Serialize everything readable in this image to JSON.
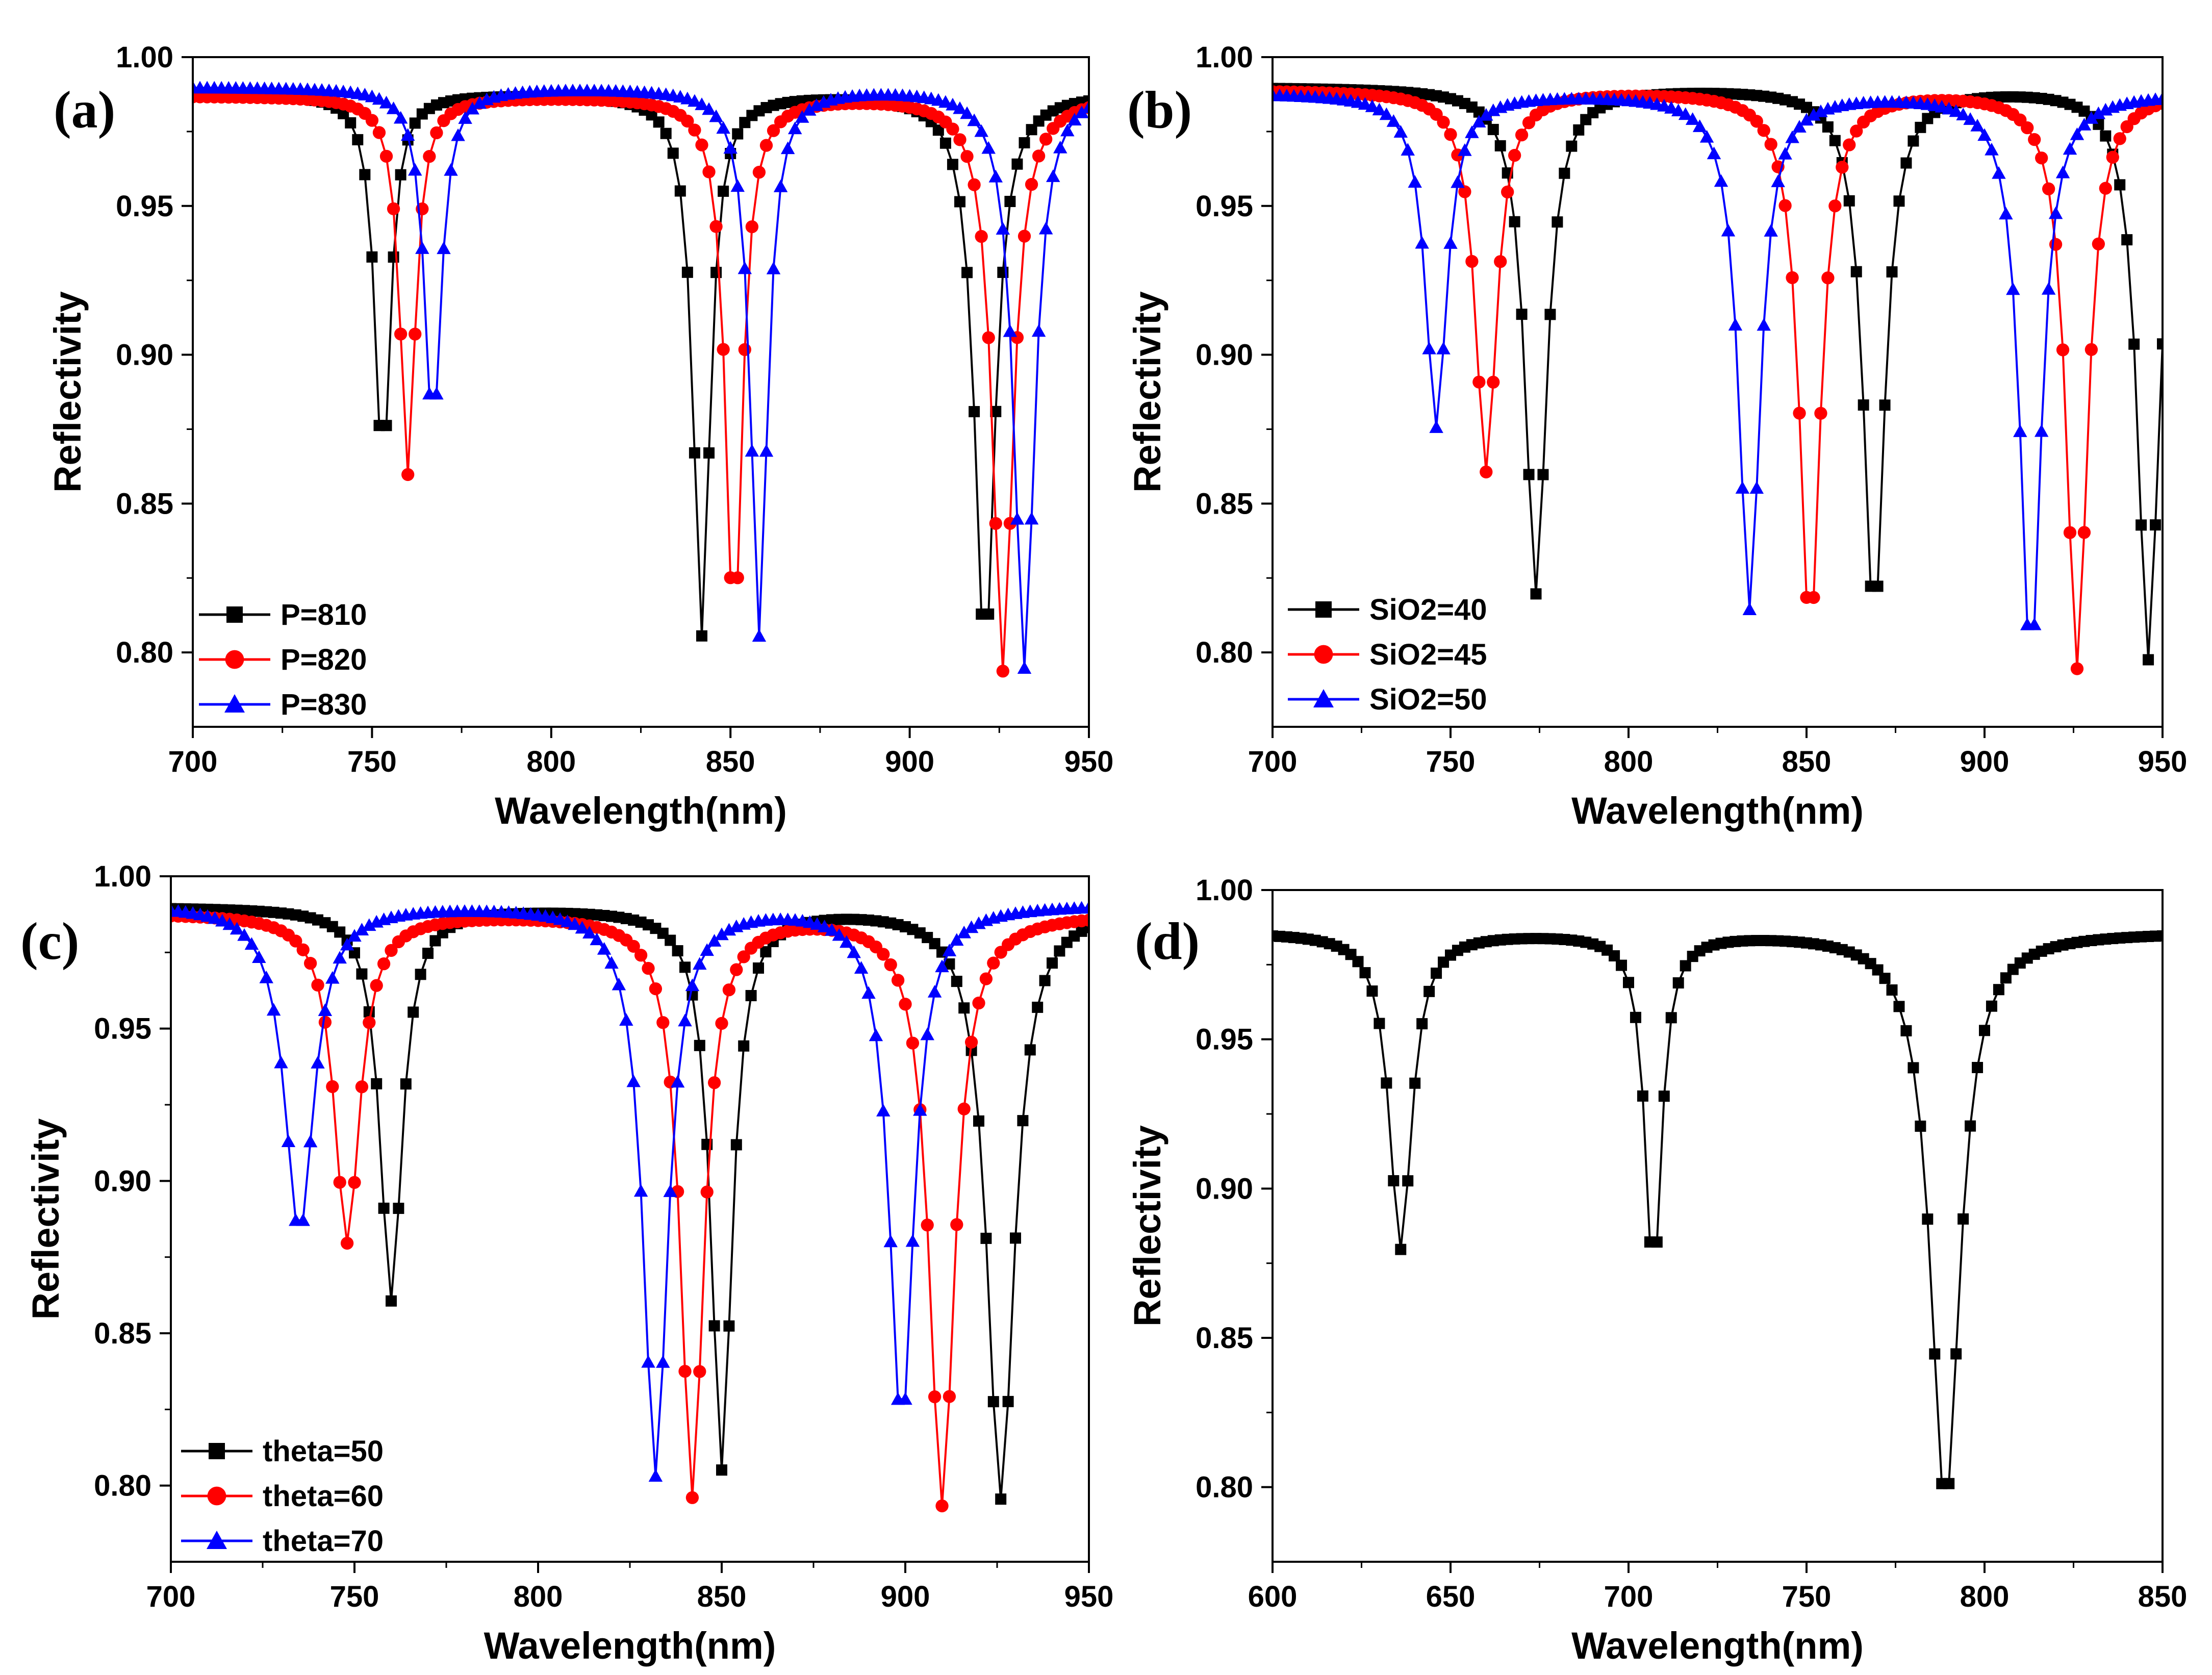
{
  "chart_data": [
    {
      "type": "line",
      "panel_label": "(a)",
      "xlabel": "Wavelength(nm)",
      "ylabel": "Reflectivity",
      "xlim": [
        700,
        950
      ],
      "ylim": [
        0.775,
        1.0
      ],
      "xticks": [
        700,
        750,
        800,
        850,
        900,
        950
      ],
      "yticks": [
        0.8,
        0.85,
        0.9,
        0.95,
        1.0
      ],
      "xtick_labels": [
        "700",
        "750",
        "800",
        "850",
        "900",
        "950"
      ],
      "ytick_labels": [
        "0.80",
        "0.85",
        "0.90",
        "0.95",
        "1.00"
      ],
      "legend_position": "bottom-left",
      "x_step": 2,
      "series": [
        {
          "name": "P=810",
          "color": "#000000",
          "marker": "square",
          "baseline": 0.988,
          "dips": [
            {
              "center": 753,
              "depth": 0.128,
              "width": 2.6
            },
            {
              "center": 842,
              "depth": 0.182,
              "width": 2.8
            },
            {
              "center": 921,
              "depth": 0.19,
              "width": 3.4
            }
          ]
        },
        {
          "name": "P=820",
          "color": "#ff0000",
          "marker": "circle",
          "baseline": 0.987,
          "dips": [
            {
              "center": 760,
              "depth": 0.127,
              "width": 2.6
            },
            {
              "center": 851,
              "depth": 0.182,
              "width": 2.8
            },
            {
              "center": 926,
              "depth": 0.193,
              "width": 3.4
            }
          ]
        },
        {
          "name": "P=830",
          "color": "#0000ff",
          "marker": "triangle",
          "baseline": 0.99,
          "dips": [
            {
              "center": 767,
              "depth": 0.116,
              "width": 2.8
            },
            {
              "center": 858,
              "depth": 0.184,
              "width": 2.8
            },
            {
              "center": 932,
              "depth": 0.195,
              "width": 3.4
            }
          ]
        }
      ]
    },
    {
      "type": "line",
      "panel_label": "(b)",
      "xlabel": "Wavelength(nm)",
      "ylabel": "Reflectivity",
      "xlim": [
        700,
        950
      ],
      "ylim": [
        0.775,
        1.0
      ],
      "xticks": [
        700,
        750,
        800,
        850,
        900,
        950
      ],
      "yticks": [
        0.8,
        0.85,
        0.9,
        0.95,
        1.0
      ],
      "xtick_labels": [
        "700",
        "750",
        "800",
        "850",
        "900",
        "950"
      ],
      "ytick_labels": [
        "0.80",
        "0.85",
        "0.90",
        "0.95",
        "1.00"
      ],
      "legend_position": "bottom-left",
      "x_step": 2,
      "series": [
        {
          "name": "SiO2=40",
          "color": "#000000",
          "marker": "square",
          "baseline": 0.99,
          "dips": [
            {
              "center": 774,
              "depth": 0.17,
              "width": 3.6
            },
            {
              "center": 869,
              "depth": 0.18,
              "width": 3.6
            },
            {
              "center": 946,
              "depth": 0.192,
              "width": 3.6
            }
          ]
        },
        {
          "name": "SiO2=45",
          "color": "#ff0000",
          "marker": "circle",
          "baseline": 0.989,
          "dips": [
            {
              "center": 760,
              "depth": 0.128,
              "width": 3.6
            },
            {
              "center": 851,
              "depth": 0.183,
              "width": 3.6
            },
            {
              "center": 926,
              "depth": 0.194,
              "width": 3.6
            }
          ]
        },
        {
          "name": "SiO2=50",
          "color": "#0000ff",
          "marker": "triangle",
          "baseline": 0.988,
          "dips": [
            {
              "center": 746,
              "depth": 0.112,
              "width": 3.6
            },
            {
              "center": 834,
              "depth": 0.173,
              "width": 3.6
            },
            {
              "center": 913,
              "depth": 0.192,
              "width": 3.6
            }
          ]
        }
      ]
    },
    {
      "type": "line",
      "panel_label": "(c)",
      "xlabel": "Wavelength(nm)",
      "ylabel": "Reflectivity",
      "xlim": [
        700,
        950
      ],
      "ylim": [
        0.775,
        1.0
      ],
      "xticks": [
        700,
        750,
        800,
        850,
        900,
        950
      ],
      "yticks": [
        0.8,
        0.85,
        0.9,
        0.95,
        1.0
      ],
      "xtick_labels": [
        "700",
        "750",
        "800",
        "850",
        "900",
        "950"
      ],
      "ytick_labels": [
        "0.80",
        "0.85",
        "0.90",
        "0.95",
        "1.00"
      ],
      "legend_position": "bottom-left",
      "x_step": 2,
      "series": [
        {
          "name": "theta=50",
          "color": "#000000",
          "marker": "square",
          "baseline": 0.99,
          "dips": [
            {
              "center": 760,
              "depth": 0.129,
              "width": 3.6
            },
            {
              "center": 850,
              "depth": 0.184,
              "width": 3.4
            },
            {
              "center": 926,
              "depth": 0.194,
              "width": 4.5
            }
          ]
        },
        {
          "name": "theta=60",
          "color": "#ff0000",
          "marker": "circle",
          "baseline": 0.988,
          "dips": [
            {
              "center": 748,
              "depth": 0.108,
              "width": 4.2
            },
            {
              "center": 842,
              "depth": 0.191,
              "width": 3.8
            },
            {
              "center": 910,
              "depth": 0.194,
              "width": 4.2
            }
          ]
        },
        {
          "name": "theta=70",
          "color": "#0000ff",
          "marker": "triangle",
          "baseline": 0.991,
          "dips": [
            {
              "center": 735,
              "depth": 0.108,
              "width": 4.8
            },
            {
              "center": 832,
              "depth": 0.187,
              "width": 4.0
            },
            {
              "center": 899,
              "depth": 0.172,
              "width": 4.0
            }
          ]
        }
      ]
    },
    {
      "type": "line",
      "panel_label": "(d)",
      "xlabel": "Wavelength(nm)",
      "ylabel": "Reflectivity",
      "xlim": [
        600,
        850
      ],
      "ylim": [
        0.775,
        1.0
      ],
      "xticks": [
        600,
        650,
        700,
        750,
        800,
        850
      ],
      "yticks": [
        0.8,
        0.85,
        0.9,
        0.95,
        1.0
      ],
      "xtick_labels": [
        "600",
        "650",
        "700",
        "750",
        "800",
        "850"
      ],
      "ytick_labels": [
        "0.80",
        "0.85",
        "0.90",
        "0.95",
        "1.00"
      ],
      "legend_position": "none",
      "x_step": 2,
      "series": [
        {
          "name": "",
          "color": "#000000",
          "marker": "square",
          "baseline": 0.986,
          "dips": [
            {
              "center": 636,
              "depth": 0.106,
              "width": 3.8
            },
            {
              "center": 707,
              "depth": 0.116,
              "width": 2.8
            },
            {
              "center": 789,
              "depth": 0.192,
              "width": 5.0
            }
          ]
        }
      ]
    }
  ]
}
